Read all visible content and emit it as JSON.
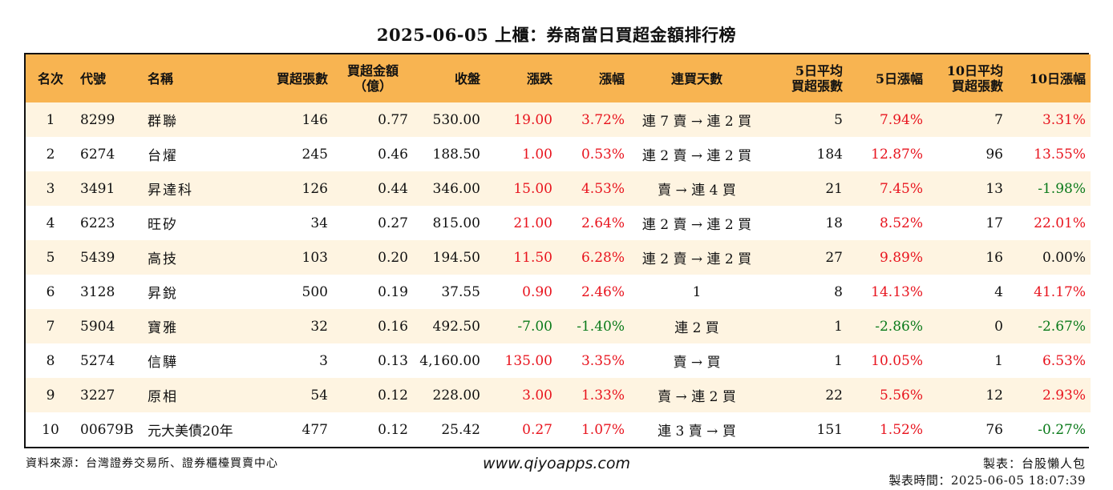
{
  "title": "2025-06-05 上櫃：券商當日買超金額排行榜",
  "headers": {
    "rank": "名次",
    "code": "代號",
    "name": "名稱",
    "buy_lots": "買超張數",
    "buy_amount_l1": "買超金額",
    "buy_amount_l2": "（億）",
    "close": "收盤",
    "change": "漲跌",
    "pct": "漲幅",
    "streak": "連買天數",
    "avg5_l1": "5日平均",
    "avg5_l2": "買超張數",
    "pct5": "5日漲幅",
    "avg10_l1": "10日平均",
    "avg10_l2": "買超張數",
    "pct10": "10日漲幅"
  },
  "rows": [
    {
      "rank": "1",
      "code": "8299",
      "name": "群聯",
      "buy_lots": "146",
      "buy_amount": "0.77",
      "close": "530.00",
      "change": "19.00",
      "pct": "3.72%",
      "streak": "連 7 賣 → 連 2 買",
      "avg5": "5",
      "pct5": "7.94%",
      "avg10": "7",
      "pct10": "3.31%"
    },
    {
      "rank": "2",
      "code": "6274",
      "name": "台燿",
      "buy_lots": "245",
      "buy_amount": "0.46",
      "close": "188.50",
      "change": "1.00",
      "pct": "0.53%",
      "streak": "連 2 賣 → 連 2 買",
      "avg5": "184",
      "pct5": "12.87%",
      "avg10": "96",
      "pct10": "13.55%"
    },
    {
      "rank": "3",
      "code": "3491",
      "name": "昇達科",
      "buy_lots": "126",
      "buy_amount": "0.44",
      "close": "346.00",
      "change": "15.00",
      "pct": "4.53%",
      "streak": "賣 → 連 4 買",
      "avg5": "21",
      "pct5": "7.45%",
      "avg10": "13",
      "pct10": "-1.98%"
    },
    {
      "rank": "4",
      "code": "6223",
      "name": "旺矽",
      "buy_lots": "34",
      "buy_amount": "0.27",
      "close": "815.00",
      "change": "21.00",
      "pct": "2.64%",
      "streak": "連 2 賣 → 連 2 買",
      "avg5": "18",
      "pct5": "8.52%",
      "avg10": "17",
      "pct10": "22.01%"
    },
    {
      "rank": "5",
      "code": "5439",
      "name": "高技",
      "buy_lots": "103",
      "buy_amount": "0.20",
      "close": "194.50",
      "change": "11.50",
      "pct": "6.28%",
      "streak": "連 2 賣 → 連 2 買",
      "avg5": "27",
      "pct5": "9.89%",
      "avg10": "16",
      "pct10": "0.00%"
    },
    {
      "rank": "6",
      "code": "3128",
      "name": "昇銳",
      "buy_lots": "500",
      "buy_amount": "0.19",
      "close": "37.55",
      "change": "0.90",
      "pct": "2.46%",
      "streak": "1",
      "avg5": "8",
      "pct5": "14.13%",
      "avg10": "4",
      "pct10": "41.17%"
    },
    {
      "rank": "7",
      "code": "5904",
      "name": "寶雅",
      "buy_lots": "32",
      "buy_amount": "0.16",
      "close": "492.50",
      "change": "-7.00",
      "pct": "-1.40%",
      "streak": "連 2 買",
      "avg5": "1",
      "pct5": "-2.86%",
      "avg10": "0",
      "pct10": "-2.67%"
    },
    {
      "rank": "8",
      "code": "5274",
      "name": "信驊",
      "buy_lots": "3",
      "buy_amount": "0.13",
      "close": "4,160.00",
      "change": "135.00",
      "pct": "3.35%",
      "streak": "賣 → 買",
      "avg5": "1",
      "pct5": "10.05%",
      "avg10": "1",
      "pct10": "6.53%"
    },
    {
      "rank": "9",
      "code": "3227",
      "name": "原相",
      "buy_lots": "54",
      "buy_amount": "0.12",
      "close": "228.00",
      "change": "3.00",
      "pct": "1.33%",
      "streak": "賣 → 連 2 買",
      "avg5": "22",
      "pct5": "5.56%",
      "avg10": "12",
      "pct10": "2.93%"
    },
    {
      "rank": "10",
      "code": "00679B",
      "name": "元大美債20年",
      "buy_lots": "477",
      "buy_amount": "0.12",
      "close": "25.42",
      "change": "0.27",
      "pct": "1.07%",
      "streak": "連 3 賣 → 買",
      "avg5": "151",
      "pct5": "1.52%",
      "avg10": "76",
      "pct10": "-0.27%"
    }
  ],
  "footer": {
    "source": "資料來源：台灣證券交易所、證券櫃檯買賣中心",
    "website": "www.qiyoapps.com",
    "author": "製表：台股懶人包",
    "made_time": "製表時間：2025-06-05 18:07:39"
  },
  "colors": {
    "header_bg": "#f8b451",
    "row_alt_bg": "#fef4e1",
    "positive": "#e8141e",
    "negative": "#0a7a1a"
  }
}
